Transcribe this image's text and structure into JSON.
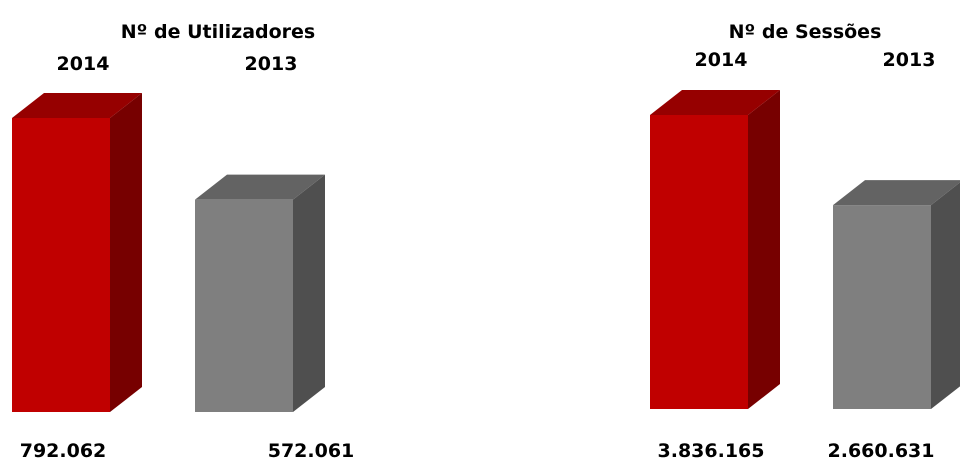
{
  "chart_data": [
    {
      "type": "bar",
      "title": "Nº de Utilizadores",
      "categories": [
        "2014",
        "2013"
      ],
      "values": [
        792062,
        572061
      ],
      "value_labels": [
        "792.062",
        "572.061"
      ],
      "colors": [
        "#c00000",
        "#7f7f7f"
      ],
      "style": "3d-column",
      "legend": "none",
      "grid": false
    },
    {
      "type": "bar",
      "title": "Nº de Sessões",
      "categories": [
        "2014",
        "2013"
      ],
      "values": [
        3836165,
        2660631
      ],
      "value_labels": [
        "3.836.165",
        "2.660.631"
      ],
      "colors": [
        "#c00000",
        "#7f7f7f"
      ],
      "style": "3d-column",
      "legend": "none",
      "grid": false
    }
  ]
}
